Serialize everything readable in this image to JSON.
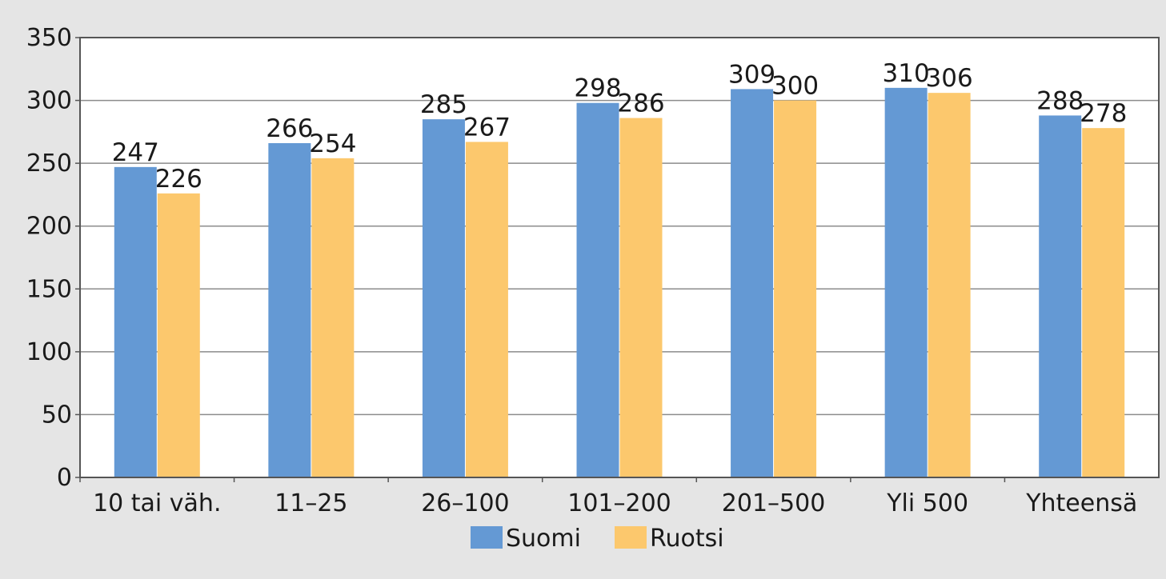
{
  "chart_data": {
    "type": "bar",
    "categories": [
      "10 tai väh.",
      "11–25",
      "26–100",
      "101–200",
      "201–500",
      "Yli 500",
      "Yhteensä"
    ],
    "series": [
      {
        "name": "Suomi",
        "color": "#6499d4",
        "values": [
          247,
          266,
          285,
          298,
          309,
          310,
          288
        ]
      },
      {
        "name": "Ruotsi",
        "color": "#fcc86d",
        "values": [
          226,
          254,
          267,
          286,
          300,
          306,
          278
        ]
      }
    ],
    "y_ticks": [
      "0",
      "50",
      "100",
      "150",
      "200",
      "250",
      "300",
      "350"
    ],
    "ylim": [
      0,
      350
    ],
    "grid": true,
    "legend_position": "bottom-center",
    "data_labels": true,
    "title": "",
    "xlabel": "",
    "ylabel": ""
  }
}
